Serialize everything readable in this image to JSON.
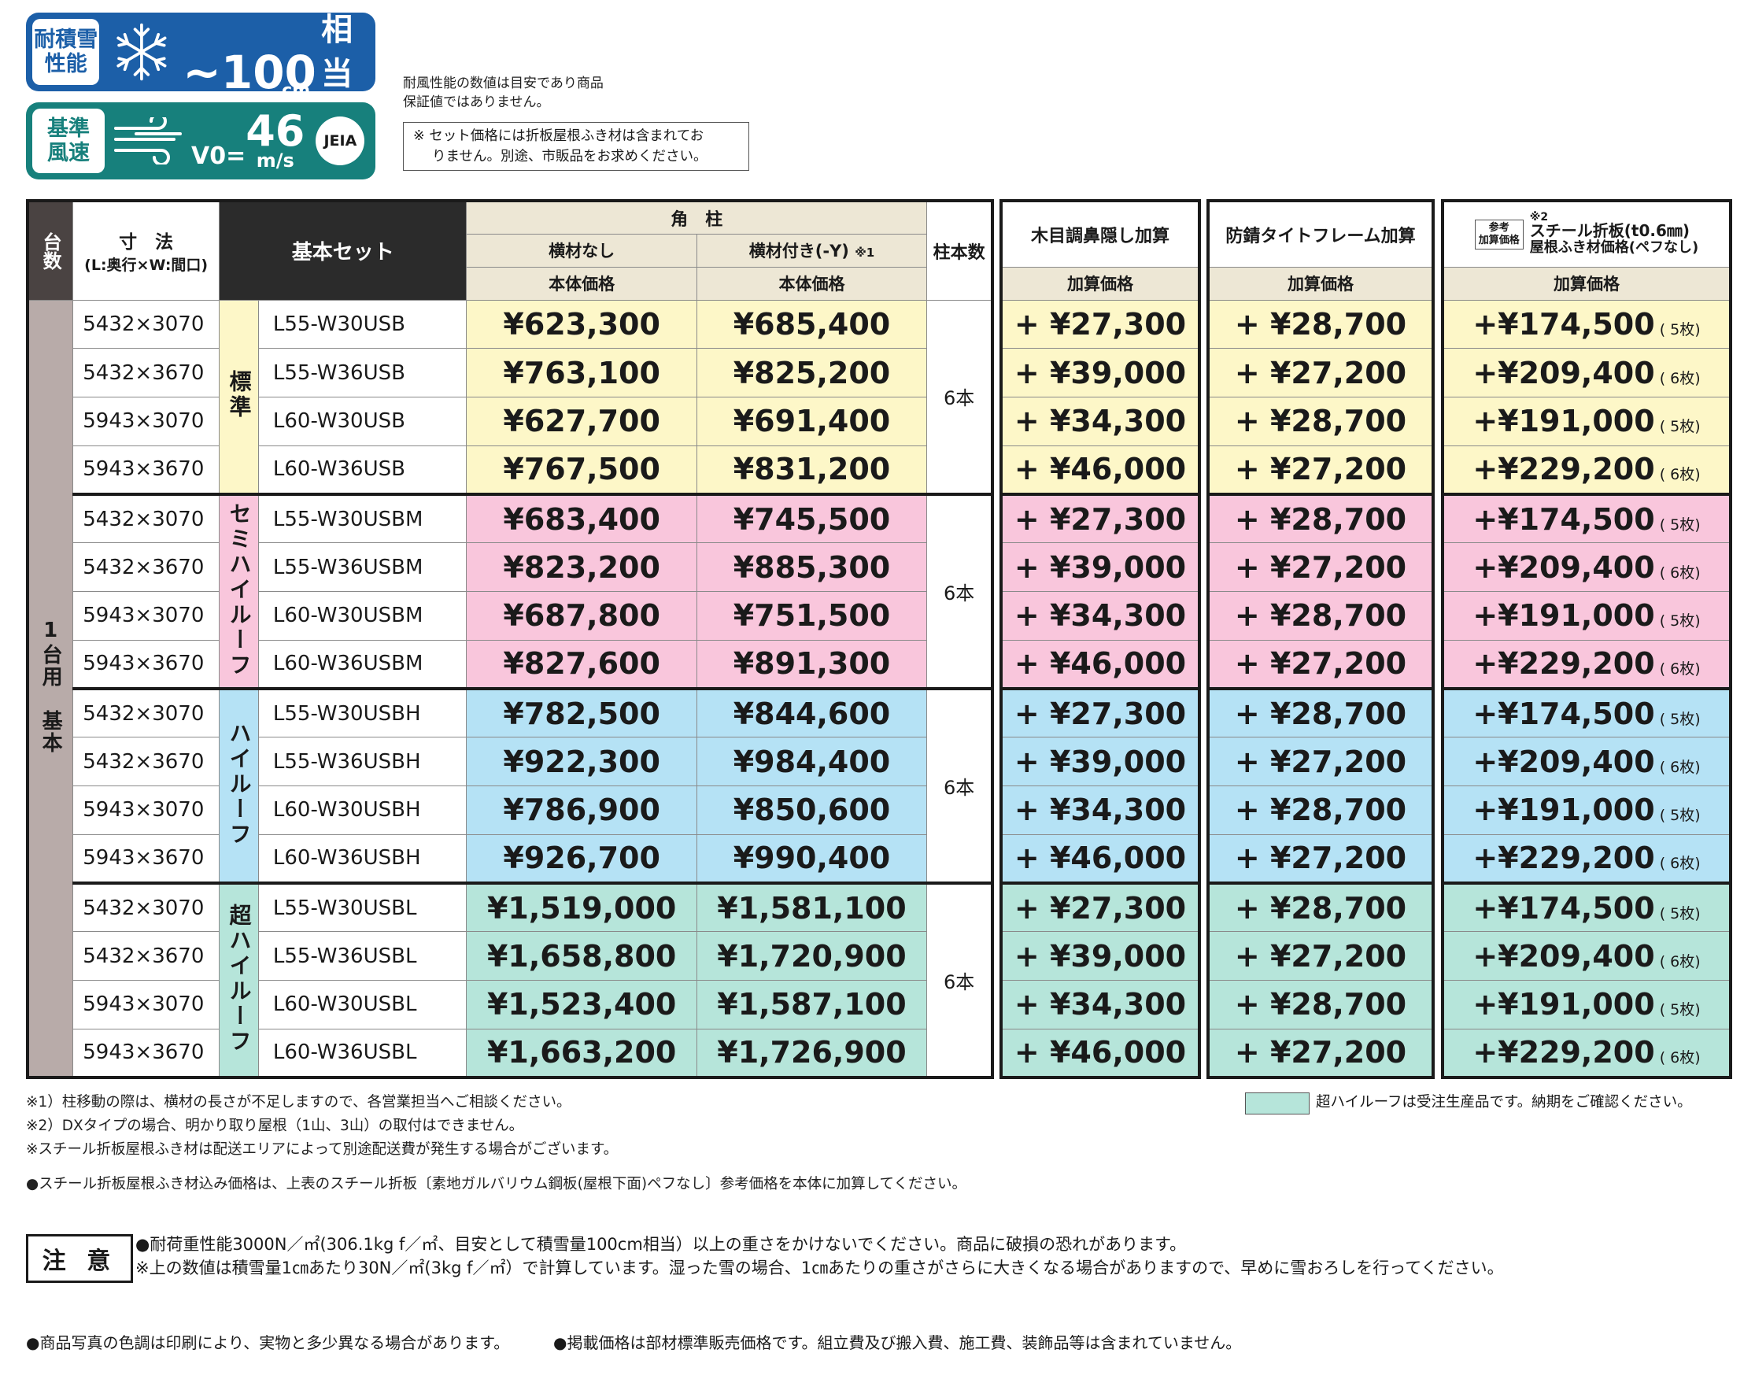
{
  "badge_snow": {
    "label_l1": "耐積雪",
    "label_l2": "性能",
    "icon": "snowflake-icon",
    "value": "~100",
    "unit": "cm",
    "suffix": "相当"
  },
  "badge_wind": {
    "label_l1": "基準",
    "label_l2": "風速",
    "icon": "wind-icon",
    "prefix": "V0=",
    "value": "46",
    "unit": "m/s",
    "logo": "JEIA"
  },
  "wind_note": {
    "l1": "耐風性能の数値は目安であり商品",
    "l2": "保証値ではありません。"
  },
  "set_note": {
    "l1": "※ セット価格には折板屋根ふき材は含まれてお",
    "l2": "りません。別途、市販品をお求めください。"
  },
  "header": {
    "units": "台数",
    "size": "寸　法",
    "size_sub": "(L:奥行×W:間口)",
    "basic_set": "基本セット",
    "kaku": "角　柱",
    "no_bar": "横材なし",
    "with_bar": "横材付き(-Y)",
    "with_bar_note": "※1",
    "body_price": "本体価格",
    "posts": "柱本数",
    "wood": "木目調鼻隠し加算",
    "rust": "防錆タイトフレーム加算",
    "ref_l1": "参考",
    "ref_l2": "加算価格",
    "steel_note": "※2",
    "steel_l1": "スチール折板(t0.6㎜)",
    "steel_l2": "屋根ふき材価格(ペフなし)",
    "add_price": "加算価格"
  },
  "side_label": "1台用　基本",
  "groups": [
    {
      "name": "標準",
      "posts": "6本",
      "color": "#fdf7c8",
      "rows": [
        {
          "size": "5432×3070",
          "code": "L55-W30USB",
          "p1": "¥623,300",
          "p2": "¥685,400",
          "wood": "+ ¥27,300",
          "rust": "+ ¥28,700",
          "steel": "+¥174,500",
          "qty": "( 5枚)"
        },
        {
          "size": "5432×3670",
          "code": "L55-W36USB",
          "p1": "¥763,100",
          "p2": "¥825,200",
          "wood": "+ ¥39,000",
          "rust": "+ ¥27,200",
          "steel": "+¥209,400",
          "qty": "( 6枚)"
        },
        {
          "size": "5943×3070",
          "code": "L60-W30USB",
          "p1": "¥627,700",
          "p2": "¥691,400",
          "wood": "+ ¥34,300",
          "rust": "+ ¥28,700",
          "steel": "+¥191,000",
          "qty": "( 5枚)"
        },
        {
          "size": "5943×3670",
          "code": "L60-W36USB",
          "p1": "¥767,500",
          "p2": "¥831,200",
          "wood": "+ ¥46,000",
          "rust": "+ ¥27,200",
          "steel": "+¥229,200",
          "qty": "( 6枚)"
        }
      ]
    },
    {
      "name": "セミハイルーフ",
      "posts": "6本",
      "color": "#f9c6dc",
      "rows": [
        {
          "size": "5432×3070",
          "code": "L55-W30USBM",
          "p1": "¥683,400",
          "p2": "¥745,500",
          "wood": "+ ¥27,300",
          "rust": "+ ¥28,700",
          "steel": "+¥174,500",
          "qty": "( 5枚)"
        },
        {
          "size": "5432×3670",
          "code": "L55-W36USBM",
          "p1": "¥823,200",
          "p2": "¥885,300",
          "wood": "+ ¥39,000",
          "rust": "+ ¥27,200",
          "steel": "+¥209,400",
          "qty": "( 6枚)"
        },
        {
          "size": "5943×3070",
          "code": "L60-W30USBM",
          "p1": "¥687,800",
          "p2": "¥751,500",
          "wood": "+ ¥34,300",
          "rust": "+ ¥28,700",
          "steel": "+¥191,000",
          "qty": "( 5枚)"
        },
        {
          "size": "5943×3670",
          "code": "L60-W36USBM",
          "p1": "¥827,600",
          "p2": "¥891,300",
          "wood": "+ ¥46,000",
          "rust": "+ ¥27,200",
          "steel": "+¥229,200",
          "qty": "( 6枚)"
        }
      ]
    },
    {
      "name": "ハイルーフ",
      "posts": "6本",
      "color": "#b5e2f5",
      "rows": [
        {
          "size": "5432×3070",
          "code": "L55-W30USBH",
          "p1": "¥782,500",
          "p2": "¥844,600",
          "wood": "+ ¥27,300",
          "rust": "+ ¥28,700",
          "steel": "+¥174,500",
          "qty": "( 5枚)"
        },
        {
          "size": "5432×3670",
          "code": "L55-W36USBH",
          "p1": "¥922,300",
          "p2": "¥984,400",
          "wood": "+ ¥39,000",
          "rust": "+ ¥27,200",
          "steel": "+¥209,400",
          "qty": "( 6枚)"
        },
        {
          "size": "5943×3070",
          "code": "L60-W30USBH",
          "p1": "¥786,900",
          "p2": "¥850,600",
          "wood": "+ ¥34,300",
          "rust": "+ ¥28,700",
          "steel": "+¥191,000",
          "qty": "( 5枚)"
        },
        {
          "size": "5943×3670",
          "code": "L60-W36USBH",
          "p1": "¥926,700",
          "p2": "¥990,400",
          "wood": "+ ¥46,000",
          "rust": "+ ¥27,200",
          "steel": "+¥229,200",
          "qty": "( 6枚)"
        }
      ]
    },
    {
      "name": "超ハイルーフ",
      "posts": "6本",
      "color": "#b6e5da",
      "rows": [
        {
          "size": "5432×3070",
          "code": "L55-W30USBL",
          "p1": "¥1,519,000",
          "p2": "¥1,581,100",
          "wood": "+ ¥27,300",
          "rust": "+ ¥28,700",
          "steel": "+¥174,500",
          "qty": "( 5枚)"
        },
        {
          "size": "5432×3670",
          "code": "L55-W36USBL",
          "p1": "¥1,658,800",
          "p2": "¥1,720,900",
          "wood": "+ ¥39,000",
          "rust": "+ ¥27,200",
          "steel": "+¥209,400",
          "qty": "( 6枚)"
        },
        {
          "size": "5943×3070",
          "code": "L60-W30USBL",
          "p1": "¥1,523,400",
          "p2": "¥1,587,100",
          "wood": "+ ¥34,300",
          "rust": "+ ¥28,700",
          "steel": "+¥191,000",
          "qty": "( 5枚)"
        },
        {
          "size": "5943×3670",
          "code": "L60-W36USBL",
          "p1": "¥1,663,200",
          "p2": "¥1,726,900",
          "wood": "+ ¥46,000",
          "rust": "+ ¥27,200",
          "steel": "+¥229,200",
          "qty": "( 6枚)"
        }
      ]
    }
  ],
  "footnotes": {
    "f1": "※1）柱移動の際は、横材の長さが不足しますので、各営業担当へご相談ください。",
    "f2": "※2）DXタイプの場合、明かり取り屋根（1山、3山）の取付はできません。",
    "f3": "※スチール折板屋根ふき材は配送エリアによって別途配送費が発生する場合がございます。",
    "f4": "●スチール折板屋根ふき材込み価格は、上表のスチール折板〔素地ガルバリウム鋼板(屋根下面)ペフなし〕参考価格を本体に加算してください。",
    "legend": "超ハイルーフは受注生産品です。納期をご確認ください。"
  },
  "caution": {
    "title": "注 意",
    "l1": "●耐荷重性能3000N／㎡(306.1kg f／㎡、目安として積雪量100cm相当）以上の重さをかけないでください。商品に破損の恐れがあります。",
    "l2": "※上の数値は積雪量1㎝あたり30N／㎡(3kg f／㎡）で計算しています。湿った雪の場合、1㎝あたりの重さがさらに大きくなる場合がありますので、早めに雪おろしを行ってください。"
  },
  "bottom": {
    "b1": "●商品写真の色調は印刷により、実物と多少異なる場合があります。",
    "b2": "●掲載価格は部材標準販売価格です。組立費及び搬入費、施工費、装飾品等は含まれていません。"
  }
}
